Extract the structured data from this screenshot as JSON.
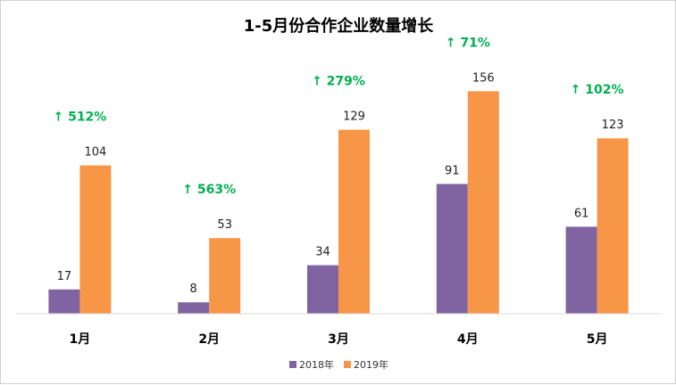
{
  "chart_data": {
    "type": "bar",
    "title": "1-5月份合作企业数量增长",
    "categories": [
      "1月",
      "2月",
      "3月",
      "4月",
      "5月"
    ],
    "series": [
      {
        "name": "2018年",
        "values": [
          17,
          8,
          34,
          91,
          61
        ],
        "color": "#8064A2"
      },
      {
        "name": "2019年",
        "values": [
          104,
          53,
          129,
          156,
          123
        ],
        "color": "#F79646"
      }
    ],
    "growth_labels": [
      "↑ 512%",
      "↑ 563%",
      "↑ 279%",
      "↑ 71%",
      "↑ 102%"
    ],
    "growth_color": "#00B050",
    "ylim": [
      0,
      180
    ],
    "grid": false,
    "legend_position": "bottom"
  }
}
